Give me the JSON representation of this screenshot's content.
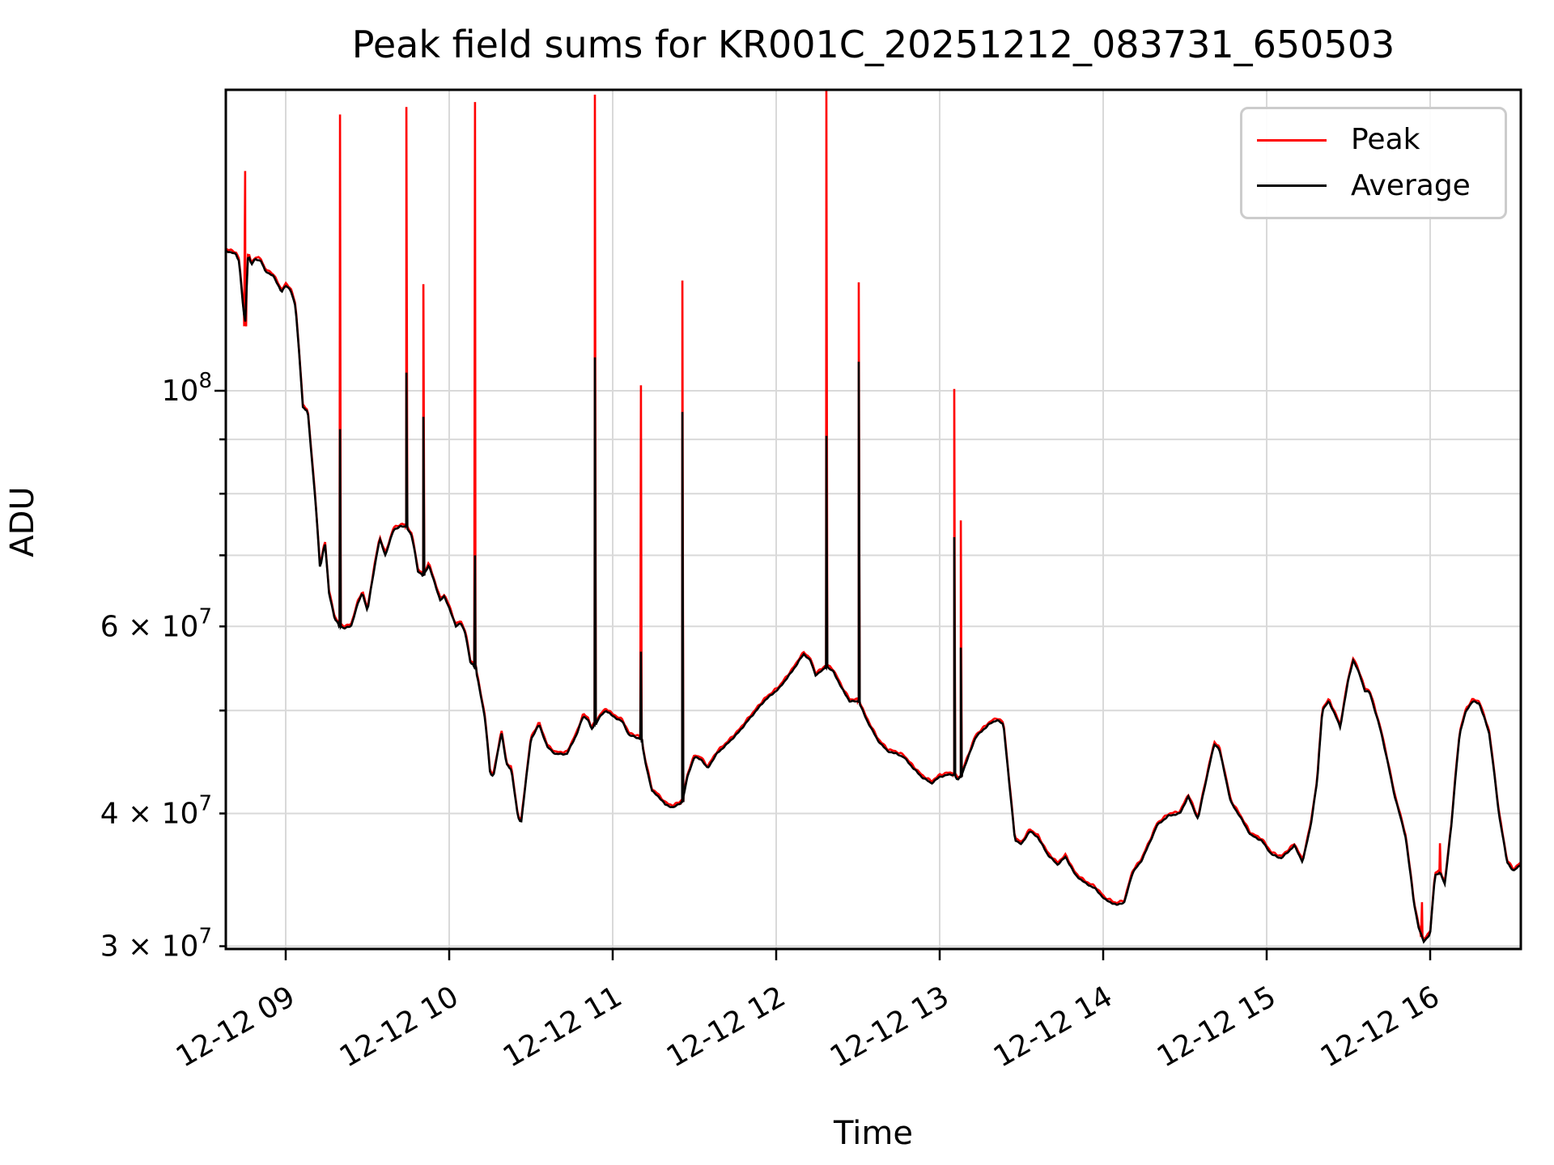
{
  "figure": {
    "background": "#ffffff"
  },
  "chart_data": {
    "type": "line",
    "title": "Peak field sums for KR001C_20251212_083731_650503",
    "xlabel": "Time",
    "ylabel": "ADU",
    "yscale": "log",
    "grid": true,
    "legend_position": "upper right",
    "colors": {
      "peak": "#ff0000",
      "average": "#000000",
      "grid": "#d9d9d9",
      "spine": "#000000"
    },
    "x_domain_hours": [
      8.633,
      16.553
    ],
    "y_domain": [
      29800000,
      192500000
    ],
    "x_ticks": [
      {
        "hour": 9,
        "label": "12-12 09"
      },
      {
        "hour": 10,
        "label": "12-12 10"
      },
      {
        "hour": 11,
        "label": "12-12 11"
      },
      {
        "hour": 12,
        "label": "12-12 12"
      },
      {
        "hour": 13,
        "label": "12-12 13"
      },
      {
        "hour": 14,
        "label": "12-12 14"
      },
      {
        "hour": 15,
        "label": "12-12 15"
      },
      {
        "hour": 16,
        "label": "12-12 16"
      }
    ],
    "y_ticks": [
      {
        "value": 100000000,
        "base": "10",
        "exp": "8",
        "major": true
      },
      {
        "value": 90000000,
        "base": "",
        "exp": "",
        "major": false
      },
      {
        "value": 80000000,
        "base": "",
        "exp": "",
        "major": false
      },
      {
        "value": 70000000,
        "base": "",
        "exp": "",
        "major": false
      },
      {
        "value": 60000000,
        "base": "6 × 10",
        "exp": "7",
        "major": false
      },
      {
        "value": 50000000,
        "base": "",
        "exp": "",
        "major": false
      },
      {
        "value": 40000000,
        "base": "4 × 10",
        "exp": "7",
        "major": false
      },
      {
        "value": 30000000,
        "base": "3 × 10",
        "exp": "7",
        "major": false
      }
    ],
    "legend": [
      {
        "label": "Peak",
        "color": "#ff0000"
      },
      {
        "label": "Average",
        "color": "#000000"
      }
    ],
    "unit_scale": 10000000,
    "average_points": [
      [
        8.633,
        13.55
      ],
      [
        8.66,
        13.5
      ],
      [
        8.695,
        13.45
      ],
      [
        8.715,
        13.25
      ],
      [
        8.735,
        12.2
      ],
      [
        8.752,
        11.5
      ],
      [
        8.77,
        13.45
      ],
      [
        8.79,
        13.15
      ],
      [
        8.815,
        13.3
      ],
      [
        8.85,
        13.25
      ],
      [
        8.875,
        12.95
      ],
      [
        8.92,
        12.85
      ],
      [
        8.95,
        12.6
      ],
      [
        8.975,
        12.4
      ],
      [
        9.0,
        12.55
      ],
      [
        9.03,
        12.45
      ],
      [
        9.06,
        12.0
      ],
      [
        9.085,
        10.7
      ],
      [
        9.105,
        9.65
      ],
      [
        9.135,
        9.55
      ],
      [
        9.155,
        8.8
      ],
      [
        9.185,
        7.75
      ],
      [
        9.21,
        6.8
      ],
      [
        9.24,
        7.2
      ],
      [
        9.265,
        6.45
      ],
      [
        9.3,
        6.1
      ],
      [
        9.332,
        6.0
      ],
      [
        9.36,
        5.98
      ],
      [
        9.4,
        6.0
      ],
      [
        9.44,
        6.3
      ],
      [
        9.47,
        6.45
      ],
      [
        9.5,
        6.2
      ],
      [
        9.545,
        6.85
      ],
      [
        9.575,
        7.25
      ],
      [
        9.61,
        7.0
      ],
      [
        9.66,
        7.4
      ],
      [
        9.7,
        7.45
      ],
      [
        9.738,
        7.45
      ],
      [
        9.77,
        7.3
      ],
      [
        9.79,
        7.05
      ],
      [
        9.81,
        6.75
      ],
      [
        9.842,
        6.7
      ],
      [
        9.875,
        6.85
      ],
      [
        9.91,
        6.6
      ],
      [
        9.945,
        6.35
      ],
      [
        9.97,
        6.4
      ],
      [
        10.0,
        6.25
      ],
      [
        10.04,
        6.0
      ],
      [
        10.07,
        6.05
      ],
      [
        10.1,
        5.9
      ],
      [
        10.13,
        5.55
      ],
      [
        10.158,
        5.5
      ],
      [
        10.18,
        5.3
      ],
      [
        10.22,
        4.9
      ],
      [
        10.25,
        4.37
      ],
      [
        10.27,
        4.33
      ],
      [
        10.32,
        4.77
      ],
      [
        10.35,
        4.45
      ],
      [
        10.38,
        4.4
      ],
      [
        10.42,
        3.97
      ],
      [
        10.44,
        3.92
      ],
      [
        10.47,
        4.3
      ],
      [
        10.5,
        4.7
      ],
      [
        10.55,
        4.85
      ],
      [
        10.6,
        4.62
      ],
      [
        10.65,
        4.55
      ],
      [
        10.72,
        4.55
      ],
      [
        10.78,
        4.75
      ],
      [
        10.82,
        4.94
      ],
      [
        10.85,
        4.9
      ],
      [
        10.87,
        4.8
      ],
      [
        10.891,
        4.85
      ],
      [
        10.93,
        4.95
      ],
      [
        10.96,
        5.0
      ],
      [
        11.0,
        4.94
      ],
      [
        11.06,
        4.88
      ],
      [
        11.1,
        4.74
      ],
      [
        11.14,
        4.72
      ],
      [
        11.173,
        4.7
      ],
      [
        11.2,
        4.47
      ],
      [
        11.24,
        4.2
      ],
      [
        11.28,
        4.15
      ],
      [
        11.32,
        4.08
      ],
      [
        11.37,
        4.05
      ],
      [
        11.4,
        4.08
      ],
      [
        11.426,
        4.1
      ],
      [
        11.46,
        4.35
      ],
      [
        11.5,
        4.52
      ],
      [
        11.54,
        4.5
      ],
      [
        11.58,
        4.41
      ],
      [
        11.64,
        4.56
      ],
      [
        11.7,
        4.65
      ],
      [
        11.77,
        4.77
      ],
      [
        11.85,
        4.94
      ],
      [
        11.93,
        5.11
      ],
      [
        12.02,
        5.25
      ],
      [
        12.1,
        5.45
      ],
      [
        12.15,
        5.6
      ],
      [
        12.17,
        5.65
      ],
      [
        12.21,
        5.57
      ],
      [
        12.24,
        5.4
      ],
      [
        12.28,
        5.45
      ],
      [
        12.307,
        5.5
      ],
      [
        12.35,
        5.44
      ],
      [
        12.4,
        5.25
      ],
      [
        12.45,
        5.1
      ],
      [
        12.505,
        5.1
      ],
      [
        12.55,
        4.91
      ],
      [
        12.62,
        4.69
      ],
      [
        12.68,
        4.58
      ],
      [
        12.74,
        4.55
      ],
      [
        12.78,
        4.52
      ],
      [
        12.84,
        4.41
      ],
      [
        12.89,
        4.33
      ],
      [
        12.95,
        4.27
      ],
      [
        13.0,
        4.33
      ],
      [
        13.05,
        4.35
      ],
      [
        13.089,
        4.35
      ],
      [
        13.11,
        4.3
      ],
      [
        13.129,
        4.33
      ],
      [
        13.17,
        4.5
      ],
      [
        13.22,
        4.72
      ],
      [
        13.3,
        4.85
      ],
      [
        13.35,
        4.9
      ],
      [
        13.39,
        4.85
      ],
      [
        13.43,
        4.2
      ],
      [
        13.46,
        3.78
      ],
      [
        13.5,
        3.74
      ],
      [
        13.55,
        3.85
      ],
      [
        13.6,
        3.8
      ],
      [
        13.66,
        3.66
      ],
      [
        13.72,
        3.58
      ],
      [
        13.77,
        3.64
      ],
      [
        13.83,
        3.5
      ],
      [
        13.89,
        3.44
      ],
      [
        13.95,
        3.4
      ],
      [
        14.01,
        3.32
      ],
      [
        14.08,
        3.28
      ],
      [
        14.13,
        3.3
      ],
      [
        14.18,
        3.52
      ],
      [
        14.23,
        3.6
      ],
      [
        14.28,
        3.74
      ],
      [
        14.33,
        3.9
      ],
      [
        14.4,
        3.98
      ],
      [
        14.47,
        4.0
      ],
      [
        14.52,
        4.15
      ],
      [
        14.58,
        3.95
      ],
      [
        14.63,
        4.3
      ],
      [
        14.68,
        4.65
      ],
      [
        14.71,
        4.6
      ],
      [
        14.78,
        4.1
      ],
      [
        14.83,
        3.99
      ],
      [
        14.9,
        3.82
      ],
      [
        14.97,
        3.77
      ],
      [
        15.03,
        3.66
      ],
      [
        15.09,
        3.63
      ],
      [
        15.13,
        3.68
      ],
      [
        15.17,
        3.73
      ],
      [
        15.22,
        3.6
      ],
      [
        15.27,
        3.9
      ],
      [
        15.31,
        4.3
      ],
      [
        15.34,
        5.0
      ],
      [
        15.38,
        5.1
      ],
      [
        15.42,
        4.95
      ],
      [
        15.45,
        4.82
      ],
      [
        15.5,
        5.35
      ],
      [
        15.53,
        5.58
      ],
      [
        15.57,
        5.4
      ],
      [
        15.6,
        5.22
      ],
      [
        15.63,
        5.2
      ],
      [
        15.7,
        4.77
      ],
      [
        15.78,
        4.17
      ],
      [
        15.85,
        3.8
      ],
      [
        15.9,
        3.3
      ],
      [
        15.93,
        3.12
      ],
      [
        15.96,
        3.03
      ],
      [
        16.0,
        3.08
      ],
      [
        16.03,
        3.5
      ],
      [
        16.06,
        3.52
      ],
      [
        16.09,
        3.43
      ],
      [
        16.13,
        3.9
      ],
      [
        16.18,
        4.75
      ],
      [
        16.22,
        5.0
      ],
      [
        16.26,
        5.1
      ],
      [
        16.3,
        5.08
      ],
      [
        16.36,
        4.77
      ],
      [
        16.42,
        4.0
      ],
      [
        16.47,
        3.6
      ],
      [
        16.51,
        3.53
      ],
      [
        16.553,
        3.58
      ]
    ],
    "average_spikes": [
      [
        9.332,
        9.2
      ],
      [
        9.738,
        10.4
      ],
      [
        9.842,
        9.45
      ],
      [
        10.158,
        7.0
      ],
      [
        10.891,
        10.75
      ],
      [
        11.173,
        5.68
      ],
      [
        11.426,
        9.55
      ],
      [
        12.307,
        9.07
      ],
      [
        12.505,
        10.65
      ],
      [
        13.089,
        7.28
      ],
      [
        13.129,
        5.73
      ]
    ],
    "peak_spikes": [
      [
        8.752,
        16.1
      ],
      [
        9.332,
        18.2
      ],
      [
        9.738,
        18.5
      ],
      [
        9.842,
        12.6
      ],
      [
        10.158,
        18.7
      ],
      [
        10.891,
        19.0
      ],
      [
        11.173,
        10.12
      ],
      [
        11.426,
        12.7
      ],
      [
        12.307,
        19.15
      ],
      [
        12.505,
        12.65
      ],
      [
        13.089,
        10.04
      ],
      [
        13.129,
        7.55
      ],
      [
        15.95,
        3.3
      ],
      [
        16.06,
        3.75
      ]
    ]
  }
}
